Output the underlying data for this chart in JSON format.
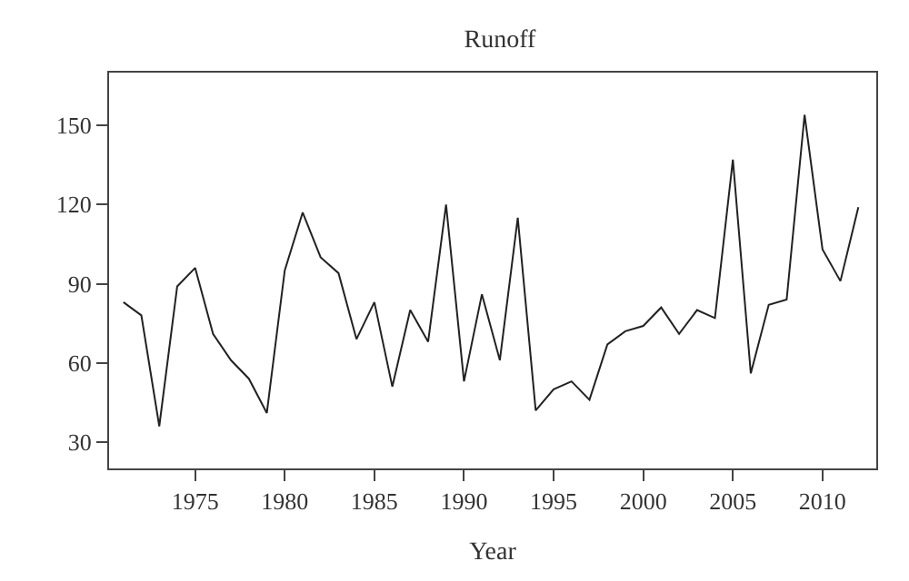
{
  "chart_data": {
    "type": "line",
    "title": "Runoff",
    "xlabel": "Year",
    "x": [
      1971,
      1972,
      1973,
      1974,
      1975,
      1976,
      1977,
      1978,
      1979,
      1980,
      1981,
      1982,
      1983,
      1984,
      1985,
      1986,
      1987,
      1988,
      1989,
      1990,
      1991,
      1992,
      1993,
      1994,
      1995,
      1996,
      1997,
      1998,
      1999,
      2000,
      2001,
      2002,
      2003,
      2004,
      2005,
      2006,
      2007,
      2008,
      2009,
      2010,
      2011,
      2012
    ],
    "series": [
      {
        "color": "#222222",
        "values": [
          83,
          78,
          36,
          89,
          96,
          71,
          61,
          54,
          41,
          95,
          117,
          100,
          94,
          69,
          83,
          51,
          80,
          68,
          120,
          53,
          86,
          61,
          115,
          42,
          50,
          53,
          46,
          67,
          72,
          74,
          81,
          71,
          80,
          77,
          137,
          56,
          82,
          84,
          154,
          103,
          91,
          119
        ]
      }
    ],
    "xlim": [
      1970.2,
      2013
    ],
    "ylim": [
      20,
      170
    ],
    "xticks": [
      1975,
      1980,
      1985,
      1990,
      1995,
      2000,
      2005,
      2010
    ],
    "yticks": [
      30,
      60,
      90,
      120,
      150
    ],
    "marker": "none",
    "line_style": "solid"
  }
}
